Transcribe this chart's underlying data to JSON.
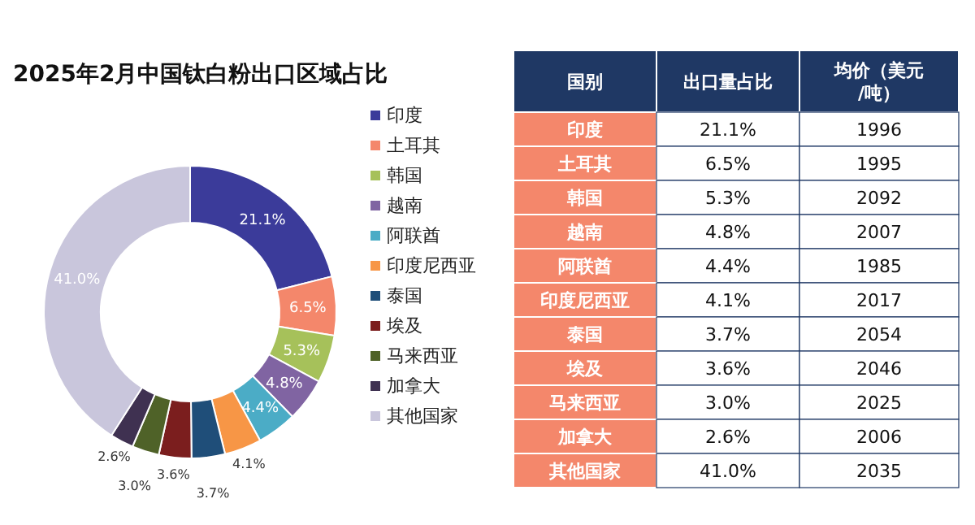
{
  "chart_data": [
    {
      "type": "donut",
      "title": "2025年2月中国钛白粉出口区域占比",
      "categories": [
        "印度",
        "土耳其",
        "韩国",
        "越南",
        "阿联酋",
        "印度尼西亚",
        "泰国",
        "埃及",
        "马来西亚",
        "加拿大",
        "其他国家"
      ],
      "values": [
        21.1,
        6.5,
        5.3,
        4.8,
        4.4,
        4.1,
        3.7,
        3.6,
        3.0,
        2.6,
        41.0
      ],
      "value_labels": [
        "21.1%",
        "6.5%",
        "5.3%",
        "4.8%",
        "4.4%",
        "4.1%",
        "3.7%",
        "3.6%",
        "3.0%",
        "2.6%",
        "41.0%"
      ],
      "colors": [
        "#3b3b9a",
        "#f4876b",
        "#a6c15a",
        "#8064a2",
        "#4bacc6",
        "#f79646",
        "#1f4e79",
        "#7b1e1e",
        "#4f6228",
        "#3f3151",
        "#c9c6dc"
      ],
      "legend": "right"
    },
    {
      "type": "other",
      "xlabel": "国别",
      "categories": [
        "印度",
        "土耳其",
        "韩国",
        "越南",
        "阿联酋",
        "印度尼西亚",
        "泰国",
        "埃及",
        "马来西亚",
        "加拿大",
        "其他国家"
      ],
      "series": [
        {
          "name": "出口量占比",
          "values": [
            21.1,
            6.5,
            5.3,
            4.8,
            4.4,
            4.1,
            3.7,
            3.6,
            3.0,
            2.6,
            41.0
          ],
          "value_labels": [
            "21.1%",
            "6.5%",
            "5.3%",
            "4.8%",
            "4.4%",
            "4.1%",
            "3.7%",
            "3.6%",
            "3.0%",
            "2.6%",
            "41.0%"
          ]
        },
        {
          "name": "均价（美元/吨）",
          "values": [
            1996,
            1995,
            2092,
            2007,
            1985,
            2017,
            2054,
            2046,
            2025,
            2006,
            2035
          ]
        }
      ],
      "data_labels": true
    }
  ]
}
